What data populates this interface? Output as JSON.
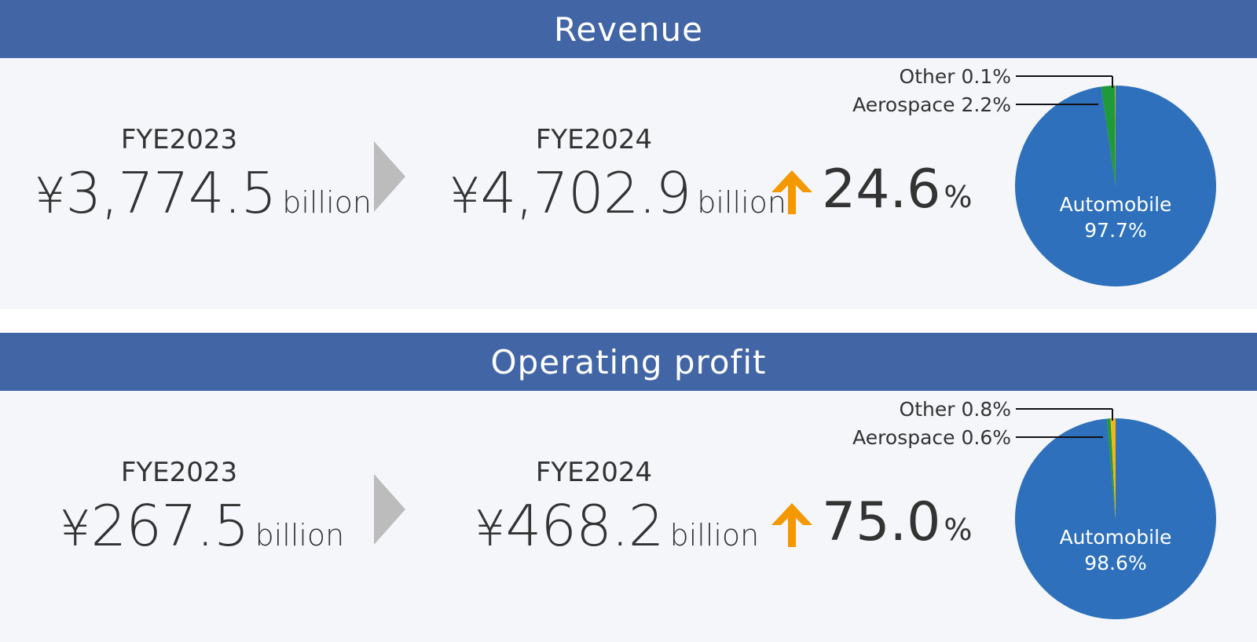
{
  "sections": [
    {
      "title": "Revenue",
      "prev": {
        "year": "FYE2023",
        "yen": "¥",
        "amount": "3,774.5",
        "unit": "billion"
      },
      "curr": {
        "year": "FYE2024",
        "yen": "¥",
        "amount": "4,702.9",
        "unit": "billion"
      },
      "growth": {
        "value": "24.6",
        "unit": "%"
      },
      "labels": {
        "other": "Other 0.1%",
        "aerospace": "Aerospace 2.2%",
        "automobile": "Automobile",
        "automobile_pct": "97.7%"
      }
    },
    {
      "title": "Operating profit",
      "prev": {
        "year": "FYE2023",
        "yen": "¥",
        "amount": "267.5",
        "unit": "billion"
      },
      "curr": {
        "year": "FYE2024",
        "yen": "¥",
        "amount": "468.2",
        "unit": "billion"
      },
      "growth": {
        "value": "75.0",
        "unit": "%"
      },
      "labels": {
        "other": "Other 0.8%",
        "aerospace": "Aerospace 0.6%",
        "automobile": "Automobile",
        "automobile_pct": "98.6%"
      }
    }
  ],
  "colors": {
    "header": "#4165a5",
    "panel": "#f4f6fa",
    "automobile": "#2e70bb",
    "aerospace": "#1f9a3a",
    "other": "#f2b61b",
    "arrow_up": "#f39800",
    "chevron": "#bcbcbc"
  },
  "chart_data": [
    {
      "type": "pie",
      "title": "",
      "categories": [
        "Automobile",
        "Aerospace",
        "Other"
      ],
      "values": [
        97.7,
        2.2,
        0.1
      ]
    },
    {
      "type": "pie",
      "title": "",
      "categories": [
        "Automobile",
        "Aerospace",
        "Other"
      ],
      "values": [
        98.6,
        0.6,
        0.8
      ]
    }
  ]
}
